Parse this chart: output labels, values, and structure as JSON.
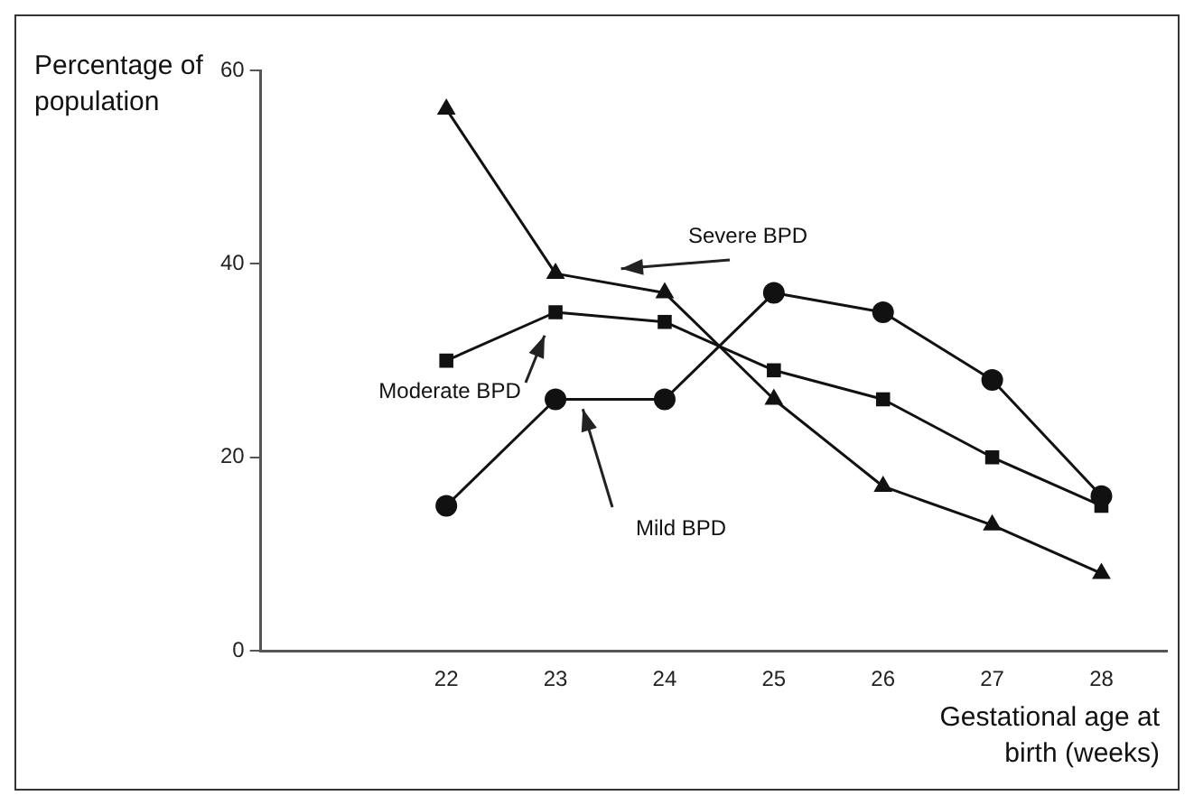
{
  "chart_data": {
    "type": "line",
    "xlabel": "Gestational age at birth (weeks)",
    "ylabel": "Percentage of population",
    "x": [
      22,
      23,
      24,
      25,
      26,
      27,
      28
    ],
    "series": [
      {
        "name": "Severe BPD",
        "color": "#111111",
        "marker": "triangle",
        "values": [
          56,
          39,
          37,
          26,
          17,
          13,
          8
        ]
      },
      {
        "name": "Moderate BPD",
        "color": "#111111",
        "marker": "square",
        "values": [
          30,
          35,
          34,
          29,
          26,
          20,
          15
        ]
      },
      {
        "name": "Mild BPD",
        "color": "#111111",
        "marker": "circle",
        "values": [
          15,
          26,
          26,
          37,
          35,
          28,
          16
        ]
      }
    ],
    "xlim": [
      20.3,
      28.6
    ],
    "xticks": [
      22,
      23,
      24,
      25,
      26,
      27,
      28
    ],
    "ylim": [
      0,
      60
    ],
    "yticks": [
      0,
      20,
      40,
      60
    ],
    "grid": false,
    "legend": false,
    "line_style": "solid"
  }
}
